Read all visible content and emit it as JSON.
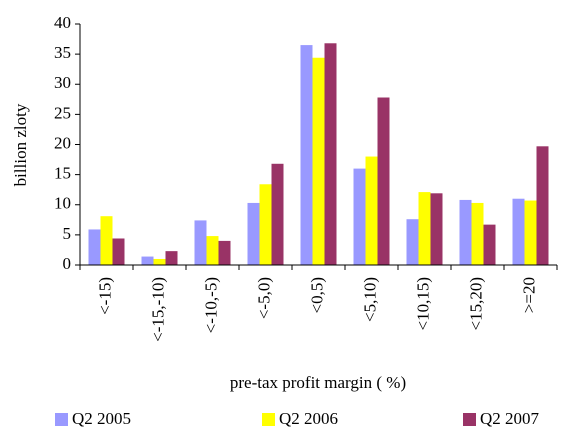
{
  "chart_data": {
    "type": "bar",
    "y_label": "billion zloty",
    "x_label": "pre-tax profit margin ( %)",
    "categories": [
      "<-15)",
      "<-15,-10)",
      "<-10,-5)",
      "<-5,0)",
      "<0,5)",
      "<5,10)",
      "<10,15)",
      "<15,20)",
      ">=20"
    ],
    "series": [
      {
        "name": "Q2 2005",
        "color": "#9999ff",
        "values": [
          5.9,
          1.4,
          7.4,
          10.3,
          36.5,
          16,
          7.6,
          10.8,
          11
        ]
      },
      {
        "name": "Q2 2006",
        "color": "#ffff00",
        "values": [
          8.1,
          1.0,
          4.8,
          13.4,
          34.4,
          18,
          12.1,
          10.3,
          10.7
        ]
      },
      {
        "name": "Q2 2007",
        "color": "#993366",
        "values": [
          4.4,
          2.3,
          4.0,
          16.8,
          36.8,
          27.8,
          11.9,
          6.7,
          19.7
        ]
      }
    ],
    "ylim": [
      0,
      40
    ],
    "yticks": [
      0,
      5,
      10,
      15,
      20,
      25,
      30,
      35,
      40
    ],
    "grid": false,
    "legend": "bottom"
  }
}
